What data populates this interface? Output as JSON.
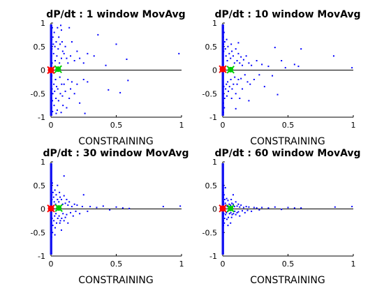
{
  "chart_data": [
    {
      "type": "scatter",
      "title": "dP/dt : 1 window MovAvg",
      "xlabel": "CONSTRAINING",
      "ylabel": "",
      "xlim": [
        0,
        1
      ],
      "ylim": [
        -1,
        1
      ],
      "xticks": [
        "0",
        "0.5",
        "1"
      ],
      "yticks": [
        "-1",
        "-0.5",
        "0",
        "0.5",
        "1"
      ],
      "grid": false,
      "colors": {
        "scatter": "#0000ff",
        "red_marker": "#ff0000",
        "green_marker": "#00cc00",
        "zero_line": "#000000"
      },
      "red_marker": {
        "x": 0.0,
        "y": 0.0
      },
      "green_marker": {
        "x": 0.055,
        "y": 0.02
      },
      "points": [
        [
          0.002,
          0.95
        ],
        [
          0.004,
          -0.95
        ],
        [
          0.003,
          0.8
        ],
        [
          0.005,
          -0.8
        ],
        [
          0.006,
          0.65
        ],
        [
          0.002,
          -0.6
        ],
        [
          0.007,
          0.45
        ],
        [
          0.008,
          -0.4
        ],
        [
          0.003,
          0.3
        ],
        [
          0.004,
          -0.25
        ],
        [
          0.009,
          0.15
        ],
        [
          0.006,
          -0.12
        ],
        [
          0.01,
          0.9
        ],
        [
          0.012,
          -0.88
        ],
        [
          0.015,
          0.7
        ],
        [
          0.011,
          -0.65
        ],
        [
          0.018,
          0.55
        ],
        [
          0.014,
          -0.5
        ],
        [
          0.02,
          0.35
        ],
        [
          0.022,
          -0.3
        ],
        [
          0.025,
          0.8
        ],
        [
          0.024,
          -0.75
        ],
        [
          0.03,
          0.5
        ],
        [
          0.028,
          -0.45
        ],
        [
          0.032,
          0.2
        ],
        [
          0.035,
          -0.2
        ],
        [
          0.04,
          0.6
        ],
        [
          0.038,
          -0.6
        ],
        [
          0.045,
          0.3
        ],
        [
          0.043,
          -0.35
        ],
        [
          0.05,
          0.9
        ],
        [
          0.048,
          -0.85
        ],
        [
          0.055,
          0.45
        ],
        [
          0.052,
          -0.4
        ],
        [
          0.06,
          0.7
        ],
        [
          0.058,
          -0.65
        ],
        [
          0.065,
          0.15
        ],
        [
          0.068,
          -0.15
        ],
        [
          0.07,
          0.55
        ],
        [
          0.072,
          -0.5
        ],
        [
          0.075,
          0.95
        ],
        [
          0.078,
          -0.9
        ],
        [
          0.08,
          0.25
        ],
        [
          0.082,
          -0.3
        ],
        [
          0.085,
          0.6
        ],
        [
          0.088,
          -0.55
        ],
        [
          0.09,
          0.4
        ],
        [
          0.092,
          -0.75
        ],
        [
          0.1,
          0.35
        ],
        [
          0.1,
          -0.3
        ],
        [
          0.11,
          0.5
        ],
        [
          0.11,
          -0.45
        ],
        [
          0.12,
          0.25
        ],
        [
          0.12,
          -0.8
        ],
        [
          0.13,
          0.15
        ],
        [
          0.13,
          -0.2
        ],
        [
          0.14,
          0.9
        ],
        [
          0.14,
          -0.6
        ],
        [
          0.15,
          0.3
        ],
        [
          0.15,
          -0.4
        ],
        [
          0.16,
          0.6
        ],
        [
          0.16,
          -0.25
        ],
        [
          0.18,
          0.2
        ],
        [
          0.18,
          -0.5
        ],
        [
          0.2,
          0.4
        ],
        [
          0.2,
          -0.3
        ],
        [
          0.22,
          0.25
        ],
        [
          0.22,
          -0.7
        ],
        [
          0.25,
          0.15
        ],
        [
          0.25,
          -0.2
        ],
        [
          0.28,
          0.35
        ],
        [
          0.28,
          -0.25
        ],
        [
          0.33,
          0.3
        ],
        [
          0.36,
          0.75
        ],
        [
          0.42,
          0.1
        ],
        [
          0.44,
          -0.42
        ],
        [
          0.5,
          0.55
        ],
        [
          0.53,
          -0.48
        ],
        [
          0.58,
          0.23
        ],
        [
          0.59,
          -0.22
        ],
        [
          0.98,
          0.35
        ],
        [
          0.04,
          -0.92
        ],
        [
          0.08,
          0.85
        ],
        [
          0.26,
          -0.92
        ]
      ]
    },
    {
      "type": "scatter",
      "title": "dP/dt : 10 window MovAvg",
      "xlabel": "CONSTRAINING",
      "ylabel": "",
      "xlim": [
        0,
        1
      ],
      "ylim": [
        -1,
        1
      ],
      "xticks": [
        "0",
        "0.5",
        "1"
      ],
      "yticks": [
        "-1",
        "-0.5",
        "0",
        "0.5",
        "1"
      ],
      "grid": false,
      "colors": {
        "scatter": "#0000ff",
        "red_marker": "#ff0000",
        "green_marker": "#00cc00",
        "zero_line": "#000000"
      },
      "red_marker": {
        "x": 0.0,
        "y": 0.02
      },
      "green_marker": {
        "x": 0.06,
        "y": 0.01
      },
      "points": [
        [
          0.002,
          0.9
        ],
        [
          0.004,
          -0.9
        ],
        [
          0.003,
          0.7
        ],
        [
          0.005,
          -0.7
        ],
        [
          0.006,
          0.55
        ],
        [
          0.002,
          -0.5
        ],
        [
          0.007,
          0.4
        ],
        [
          0.008,
          -0.35
        ],
        [
          0.01,
          0.8
        ],
        [
          0.012,
          -0.8
        ],
        [
          0.015,
          0.6
        ],
        [
          0.014,
          -0.6
        ],
        [
          0.02,
          0.45
        ],
        [
          0.022,
          -0.4
        ],
        [
          0.025,
          0.3
        ],
        [
          0.028,
          -0.3
        ],
        [
          0.03,
          0.65
        ],
        [
          0.032,
          -0.55
        ],
        [
          0.035,
          0.2
        ],
        [
          0.038,
          -0.25
        ],
        [
          0.04,
          0.5
        ],
        [
          0.043,
          -0.45
        ],
        [
          0.05,
          0.35
        ],
        [
          0.052,
          -0.35
        ],
        [
          0.06,
          0.25
        ],
        [
          0.062,
          -0.2
        ],
        [
          0.065,
          0.55
        ],
        [
          0.068,
          -0.6
        ],
        [
          0.07,
          0.4
        ],
        [
          0.072,
          -0.4
        ],
        [
          0.08,
          0.3
        ],
        [
          0.082,
          -0.3
        ],
        [
          0.09,
          0.15
        ],
        [
          0.092,
          -0.15
        ],
        [
          0.1,
          0.45
        ],
        [
          0.1,
          -0.5
        ],
        [
          0.11,
          0.2
        ],
        [
          0.11,
          -0.3
        ],
        [
          0.12,
          0.35
        ],
        [
          0.12,
          -0.2
        ],
        [
          0.13,
          0.15
        ],
        [
          0.13,
          -0.6
        ],
        [
          0.14,
          0.28
        ],
        [
          0.14,
          -0.18
        ],
        [
          0.15,
          0.1
        ],
        [
          0.15,
          -0.4
        ],
        [
          0.16,
          0.22
        ],
        [
          0.17,
          -0.1
        ],
        [
          0.18,
          0.3
        ],
        [
          0.19,
          -0.25
        ],
        [
          0.2,
          0.15
        ],
        [
          0.21,
          -0.3
        ],
        [
          0.22,
          0.1
        ],
        [
          0.24,
          -0.2
        ],
        [
          0.26,
          0.2
        ],
        [
          0.28,
          -0.1
        ],
        [
          0.3,
          0.12
        ],
        [
          0.32,
          -0.35
        ],
        [
          0.35,
          0.08
        ],
        [
          0.38,
          -0.12
        ],
        [
          0.4,
          0.48
        ],
        [
          0.42,
          -0.52
        ],
        [
          0.45,
          0.2
        ],
        [
          0.48,
          0.05
        ],
        [
          0.55,
          0.12
        ],
        [
          0.58,
          0.08
        ],
        [
          0.6,
          0.45
        ],
        [
          0.85,
          0.3
        ],
        [
          0.99,
          0.05
        ],
        [
          0.12,
          0.58
        ],
        [
          0.2,
          -0.65
        ],
        [
          0.1,
          -0.82
        ]
      ]
    },
    {
      "type": "scatter",
      "title": "dP/dt : 30 window MovAvg",
      "xlabel": "CONSTRAINING",
      "ylabel": "",
      "xlim": [
        0,
        1
      ],
      "ylim": [
        -1,
        1
      ],
      "xticks": [
        "0",
        "0.5",
        "1"
      ],
      "yticks": [
        "-1",
        "-0.5",
        "0",
        "0.5",
        "1"
      ],
      "grid": false,
      "colors": {
        "scatter": "#0000ff",
        "red_marker": "#ff0000",
        "green_marker": "#00cc00",
        "zero_line": "#000000"
      },
      "red_marker": {
        "x": 0.0,
        "y": 0.01
      },
      "green_marker": {
        "x": 0.06,
        "y": 0.02
      },
      "points": [
        [
          0.002,
          0.6
        ],
        [
          0.004,
          -0.6
        ],
        [
          0.003,
          0.45
        ],
        [
          0.005,
          -0.45
        ],
        [
          0.006,
          0.3
        ],
        [
          0.002,
          -0.3
        ],
        [
          0.007,
          0.2
        ],
        [
          0.008,
          -0.2
        ],
        [
          0.01,
          0.55
        ],
        [
          0.012,
          -0.5
        ],
        [
          0.015,
          0.35
        ],
        [
          0.014,
          -0.35
        ],
        [
          0.02,
          0.25
        ],
        [
          0.022,
          -0.25
        ],
        [
          0.025,
          0.15
        ],
        [
          0.028,
          -0.15
        ],
        [
          0.03,
          0.4
        ],
        [
          0.032,
          -0.4
        ],
        [
          0.035,
          0.1
        ],
        [
          0.038,
          -0.1
        ],
        [
          0.04,
          0.3
        ],
        [
          0.043,
          -0.3
        ],
        [
          0.05,
          0.2
        ],
        [
          0.052,
          -0.2
        ],
        [
          0.06,
          0.15
        ],
        [
          0.062,
          -0.15
        ],
        [
          0.065,
          0.35
        ],
        [
          0.068,
          -0.3
        ],
        [
          0.07,
          0.25
        ],
        [
          0.072,
          -0.25
        ],
        [
          0.08,
          0.2
        ],
        [
          0.082,
          -0.2
        ],
        [
          0.09,
          0.1
        ],
        [
          0.092,
          -0.1
        ],
        [
          0.1,
          0.28
        ],
        [
          0.1,
          -0.25
        ],
        [
          0.11,
          0.12
        ],
        [
          0.11,
          -0.18
        ],
        [
          0.12,
          0.2
        ],
        [
          0.12,
          -0.12
        ],
        [
          0.13,
          0.08
        ],
        [
          0.13,
          -0.3
        ],
        [
          0.14,
          0.15
        ],
        [
          0.15,
          -0.08
        ],
        [
          0.16,
          0.05
        ],
        [
          0.17,
          -0.15
        ],
        [
          0.18,
          0.1
        ],
        [
          0.19,
          -0.05
        ],
        [
          0.2,
          0.08
        ],
        [
          0.22,
          -0.1
        ],
        [
          0.24,
          0.05
        ],
        [
          0.25,
          0.3
        ],
        [
          0.28,
          -0.05
        ],
        [
          0.3,
          0.05
        ],
        [
          0.35,
          0.03
        ],
        [
          0.4,
          0.06
        ],
        [
          0.45,
          -0.02
        ],
        [
          0.5,
          0.04
        ],
        [
          0.55,
          0.02
        ],
        [
          0.6,
          0.01
        ],
        [
          0.86,
          0.05
        ],
        [
          0.99,
          0.06
        ],
        [
          0.1,
          0.7
        ],
        [
          0.08,
          -0.45
        ],
        [
          0.05,
          0.5
        ],
        [
          0.03,
          -0.55
        ]
      ]
    },
    {
      "type": "scatter",
      "title": "dP/dt : 60 window MovAvg",
      "xlabel": "CONSTRAINING",
      "ylabel": "",
      "xlim": [
        0,
        1
      ],
      "ylim": [
        -1,
        1
      ],
      "xticks": [
        "0",
        "0.5",
        "1"
      ],
      "yticks": [
        "-1",
        "-0.5",
        "0",
        "0.5",
        "1"
      ],
      "grid": false,
      "colors": {
        "scatter": "#0000ff",
        "red_marker": "#ff0000",
        "green_marker": "#00cc00",
        "zero_line": "#000000"
      },
      "red_marker": {
        "x": 0.0,
        "y": 0.01
      },
      "green_marker": {
        "x": 0.06,
        "y": 0.01
      },
      "points": [
        [
          0.002,
          0.35
        ],
        [
          0.004,
          -0.35
        ],
        [
          0.003,
          0.25
        ],
        [
          0.005,
          -0.25
        ],
        [
          0.006,
          0.15
        ],
        [
          0.002,
          -0.15
        ],
        [
          0.007,
          0.1
        ],
        [
          0.008,
          -0.1
        ],
        [
          0.01,
          0.3
        ],
        [
          0.012,
          -0.3
        ],
        [
          0.015,
          0.2
        ],
        [
          0.014,
          -0.2
        ],
        [
          0.02,
          0.12
        ],
        [
          0.022,
          -0.12
        ],
        [
          0.025,
          0.08
        ],
        [
          0.028,
          -0.08
        ],
        [
          0.03,
          0.22
        ],
        [
          0.032,
          -0.22
        ],
        [
          0.035,
          0.05
        ],
        [
          0.038,
          -0.05
        ],
        [
          0.04,
          0.18
        ],
        [
          0.043,
          -0.18
        ],
        [
          0.05,
          0.1
        ],
        [
          0.052,
          -0.1
        ],
        [
          0.06,
          0.08
        ],
        [
          0.062,
          -0.08
        ],
        [
          0.065,
          0.2
        ],
        [
          0.068,
          -0.18
        ],
        [
          0.07,
          0.12
        ],
        [
          0.072,
          -0.12
        ],
        [
          0.08,
          0.1
        ],
        [
          0.082,
          -0.1
        ],
        [
          0.09,
          0.05
        ],
        [
          0.092,
          -0.05
        ],
        [
          0.1,
          0.15
        ],
        [
          0.1,
          -0.12
        ],
        [
          0.11,
          0.06
        ],
        [
          0.11,
          -0.08
        ],
        [
          0.12,
          0.1
        ],
        [
          0.12,
          -0.06
        ],
        [
          0.13,
          0.04
        ],
        [
          0.13,
          -0.15
        ],
        [
          0.14,
          0.08
        ],
        [
          0.15,
          -0.04
        ],
        [
          0.16,
          0.03
        ],
        [
          0.17,
          -0.08
        ],
        [
          0.18,
          0.05
        ],
        [
          0.19,
          -0.03
        ],
        [
          0.2,
          0.04
        ],
        [
          0.22,
          -0.05
        ],
        [
          0.24,
          0.03
        ],
        [
          0.26,
          0.02
        ],
        [
          0.28,
          -0.02
        ],
        [
          0.3,
          0.03
        ],
        [
          0.35,
          0.02
        ],
        [
          0.4,
          0.04
        ],
        [
          0.45,
          -0.01
        ],
        [
          0.5,
          0.03
        ],
        [
          0.55,
          0.02
        ],
        [
          0.6,
          0.02
        ],
        [
          0.86,
          0.04
        ],
        [
          0.99,
          0.05
        ],
        [
          0.02,
          0.45
        ],
        [
          0.04,
          -0.35
        ],
        [
          0.08,
          0.3
        ],
        [
          0.06,
          -0.3
        ]
      ]
    }
  ]
}
